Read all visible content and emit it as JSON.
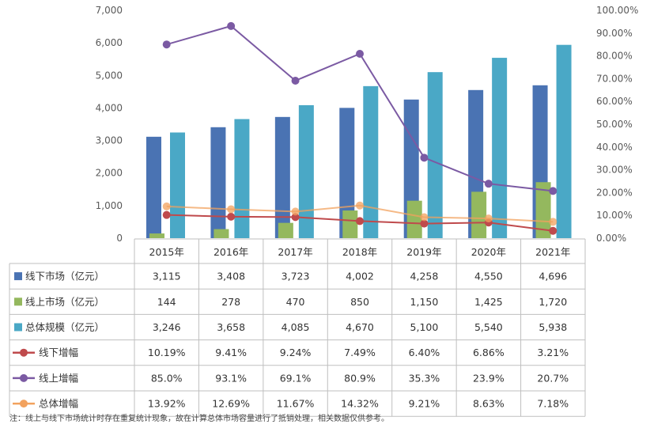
{
  "chart_data": {
    "type": "bar+line",
    "categories": [
      "2015年",
      "2016年",
      "2017年",
      "2018年",
      "2019年",
      "2020年",
      "2021年"
    ],
    "y_left": {
      "min": 0,
      "max": 7000,
      "step": 1000,
      "tick_labels": [
        "0",
        "1,000",
        "2,000",
        "3,000",
        "4,000",
        "5,000",
        "6,000",
        "7,000"
      ]
    },
    "y_right": {
      "min": 0,
      "max": 100,
      "step": 10,
      "tick_labels": [
        "0.00%",
        "10.00%",
        "20.00%",
        "30.00%",
        "40.00%",
        "50.00%",
        "60.00%",
        "70.00%",
        "80.00%",
        "90.00%",
        "100.00%"
      ]
    },
    "bar_series": [
      {
        "name": "线下市场（亿元）",
        "color": "#4a73b3",
        "values": [
          3115,
          3408,
          3723,
          4002,
          4258,
          4550,
          4696
        ],
        "labels": [
          "3,115",
          "3,408",
          "3,723",
          "4,002",
          "4,258",
          "4,550",
          "4,696"
        ]
      },
      {
        "name": "线上市场（亿元）",
        "color": "#94b85e",
        "values": [
          144,
          278,
          470,
          850,
          1150,
          1425,
          1720
        ],
        "labels": [
          "144",
          "278",
          "470",
          "850",
          "1,150",
          "1,425",
          "1,720"
        ]
      },
      {
        "name": "总体规模（亿元）",
        "color": "#4aa8c6",
        "values": [
          3246,
          3658,
          4085,
          4670,
          5100,
          5540,
          5938
        ],
        "labels": [
          "3,246",
          "3,658",
          "4,085",
          "4,670",
          "5,100",
          "5,540",
          "5,938"
        ]
      }
    ],
    "line_series": [
      {
        "name": "线下增幅",
        "color": "#bf4a4c",
        "values": [
          10.19,
          9.41,
          9.24,
          7.49,
          6.4,
          6.86,
          3.21
        ],
        "labels": [
          "10.19%",
          "9.41%",
          "9.24%",
          "7.49%",
          "6.40%",
          "6.86%",
          "3.21%"
        ]
      },
      {
        "name": "线上增幅",
        "color": "#7b5aa3",
        "values": [
          85.0,
          93.1,
          69.1,
          80.9,
          35.3,
          23.9,
          20.7
        ],
        "labels": [
          "85.0%",
          "93.1%",
          "69.1%",
          "80.9%",
          "35.3%",
          "23.9%",
          "20.7%"
        ]
      },
      {
        "name": "总体增幅",
        "color": "#f2a25e",
        "values": [
          13.92,
          12.69,
          11.67,
          14.32,
          9.21,
          8.63,
          7.18
        ],
        "labels": [
          "13.92%",
          "12.69%",
          "11.67%",
          "14.32%",
          "9.21%",
          "8.63%",
          "7.18%"
        ]
      }
    ],
    "legend_placement": "data-table",
    "grid": false,
    "note": "注：线上与线下市场统计时存在重复统计现象，故在计算总体市场容量进行了抵销处理，相关数据仅供参考。"
  }
}
